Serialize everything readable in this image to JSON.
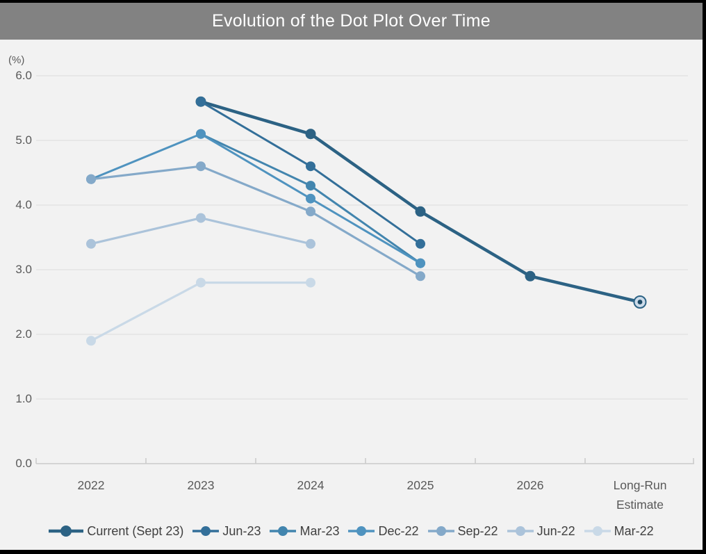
{
  "chart_data": {
    "type": "line",
    "title": "Evolution of the Dot Plot Over Time",
    "ylabel": "(%)",
    "xlabel": "",
    "ylim": [
      0,
      6
    ],
    "ytick_labels": [
      "6.0",
      "5.0",
      "4.0",
      "3.0",
      "2.0",
      "1.0",
      "0.0"
    ],
    "ytick_values": [
      6,
      5,
      4,
      3,
      2,
      1,
      0
    ],
    "categories": [
      "2022",
      "2023",
      "2024",
      "2025",
      "2026",
      "Long-Run\nEstimate"
    ],
    "grid": "horizontal",
    "legend_position": "bottom",
    "series": [
      {
        "name": "Current (Sept 23)",
        "color": "#2c6284",
        "line_width": 4.5,
        "marker_radius": 7.5,
        "values": [
          null,
          5.6,
          5.1,
          3.9,
          2.9,
          2.5
        ],
        "end_marker": "circled-dot"
      },
      {
        "name": "Jun-23",
        "color": "#336f99",
        "line_width": 3,
        "marker_radius": 7,
        "values": [
          null,
          5.6,
          4.6,
          3.4,
          null,
          null
        ]
      },
      {
        "name": "Mar-23",
        "color": "#4285ae",
        "line_width": 3,
        "marker_radius": 7,
        "values": [
          null,
          5.1,
          4.3,
          3.1,
          null,
          null
        ]
      },
      {
        "name": "Dec-22",
        "color": "#4f93bf",
        "line_width": 3,
        "marker_radius": 7,
        "values": [
          4.4,
          5.1,
          4.1,
          3.1,
          null,
          null
        ]
      },
      {
        "name": "Sep-22",
        "color": "#84a9c9",
        "line_width": 3.2,
        "marker_radius": 7,
        "values": [
          4.4,
          4.6,
          3.9,
          2.9,
          null,
          null
        ]
      },
      {
        "name": "Jun-22",
        "color": "#abc3da",
        "line_width": 3.2,
        "marker_radius": 7,
        "values": [
          3.4,
          3.8,
          3.4,
          null,
          null,
          null
        ]
      },
      {
        "name": "Mar-22",
        "color": "#c9d9e7",
        "line_width": 3.2,
        "marker_radius": 7,
        "values": [
          1.9,
          2.8,
          2.8,
          null,
          null,
          null
        ]
      }
    ],
    "colors": {
      "header_bg": "#828282",
      "title_text": "#ffffff",
      "canvas_bg": "#f2f2f2",
      "gridline": "#e3e3e3",
      "axis_line": "#c9c9c9",
      "axis_text": "#595959",
      "legend_text": "#404040",
      "frame": "#000000",
      "endpoint_ring_fill": "#ccdbe9",
      "endpoint_dot": "#1d4a66"
    }
  }
}
